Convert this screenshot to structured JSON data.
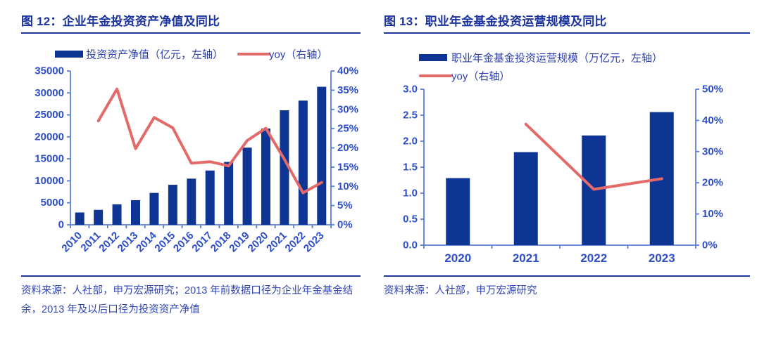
{
  "colors": {
    "title_blue": "#1A339E",
    "bar_blue": "#0E3594",
    "axis_blue": "#5B7ED6",
    "tick_label_blue": "#2E4EC8",
    "legend_text_blue": "#2B3FAE",
    "line_red": "#E46A6A",
    "source_blue": "#3046B4"
  },
  "chart_data": [
    {
      "id": "fig12",
      "type": "bar",
      "title": "图 12：企业年金投资资产净值及同比",
      "categories": [
        "2010",
        "2011",
        "2012",
        "2013",
        "2014",
        "2015",
        "2016",
        "2017",
        "2018",
        "2019",
        "2020",
        "2021",
        "2022",
        "2023"
      ],
      "series": [
        {
          "name": "投资资产净值（亿元，左轴）",
          "kind": "bar",
          "axis": "left",
          "values": [
            2800,
            3400,
            4650,
            5600,
            7250,
            9100,
            10500,
            12350,
            14300,
            17550,
            21900,
            26050,
            28250,
            31400
          ]
        },
        {
          "name": "yoy（右轴）",
          "kind": "line",
          "axis": "right",
          "values": [
            null,
            27.0,
            35.3,
            19.8,
            27.9,
            25.2,
            16.0,
            16.4,
            15.3,
            21.9,
            25.1,
            17.0,
            8.3,
            11.0
          ]
        }
      ],
      "left_axis": {
        "min": 0,
        "max": 35000,
        "step": 5000,
        "tick_labels": [
          "0",
          "5000",
          "10000",
          "15000",
          "20000",
          "25000",
          "30000",
          "35000"
        ]
      },
      "right_axis": {
        "min": 0,
        "max": 40,
        "step": 5,
        "tick_labels": [
          "0%",
          "5%",
          "10%",
          "15%",
          "20%",
          "25%",
          "30%",
          "35%",
          "40%"
        ]
      },
      "x_label_rotation": -45,
      "legend_position": "top-row",
      "grid": false,
      "source": "资料来源：人社部，申万宏源研究；2013 年前数据口径为企业年金基金结余，2013 年及以后口径为投资资产净值"
    },
    {
      "id": "fig13",
      "type": "bar",
      "title": "图 13：职业年金基金投资运营规模及同比",
      "categories": [
        "2020",
        "2021",
        "2022",
        "2023"
      ],
      "series": [
        {
          "name": "职业年金基金投资运营规模（万亿元，左轴）",
          "kind": "bar",
          "axis": "left",
          "values": [
            1.29,
            1.79,
            2.11,
            2.56
          ]
        },
        {
          "name": "yoy（右轴）",
          "kind": "line",
          "axis": "right",
          "values": [
            null,
            38.8,
            17.9,
            21.3
          ]
        }
      ],
      "left_axis": {
        "min": 0,
        "max": 3.0,
        "step": 0.5,
        "tick_labels": [
          "0.0",
          "0.5",
          "1.0",
          "1.5",
          "2.0",
          "2.5",
          "3.0"
        ]
      },
      "right_axis": {
        "min": 0,
        "max": 50,
        "step": 10,
        "tick_labels": [
          "0%",
          "10%",
          "20%",
          "30%",
          "40%",
          "50%"
        ]
      },
      "x_label_rotation": 0,
      "legend_position": "top-left-stacked",
      "grid": false,
      "source": "资料来源：人社部，申万宏源研究"
    }
  ]
}
